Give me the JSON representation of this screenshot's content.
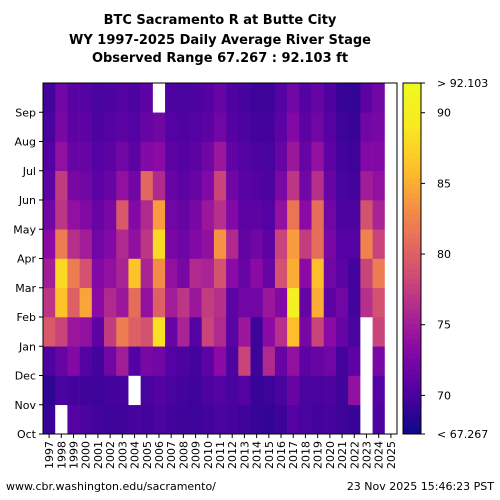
{
  "chart_data": {
    "type": "heatmap",
    "title_lines": [
      "BTC Sacramento R at Butte City",
      "WY 1997-2025 Daily Average River Stage",
      "Observed Range 67.267 : 92.103 ft"
    ],
    "x_tick_labels": [
      "1997",
      "1998",
      "1999",
      "2000",
      "2001",
      "2002",
      "2003",
      "2004",
      "2005",
      "2006",
      "2007",
      "2008",
      "2009",
      "2010",
      "2011",
      "2012",
      "2013",
      "2014",
      "2015",
      "2016",
      "2017",
      "2018",
      "2019",
      "2020",
      "2021",
      "2022",
      "2023",
      "2024",
      "2025"
    ],
    "y_tick_labels": [
      "Oct",
      "Nov",
      "Dec",
      "Jan",
      "Feb",
      "Mar",
      "Apr",
      "May",
      "Jun",
      "Jul",
      "Aug",
      "Sep"
    ],
    "colorbar": {
      "top_label": "> 92.103",
      "bottom_label": "< 67.267",
      "ticks": [
        {
          "value": 70,
          "label": "70"
        },
        {
          "value": 75,
          "label": "75"
        },
        {
          "value": 80,
          "label": "80"
        },
        {
          "value": 85,
          "label": "85"
        },
        {
          "value": 90,
          "label": "90"
        }
      ],
      "min": 67.267,
      "max": 92.103,
      "colormap": "plasma"
    },
    "series_monthly": [
      {
        "year": "1997",
        "values": [
          69.2,
          68.8,
          70.2,
          79.5,
          77.0,
          75.0,
          73.5,
          72.0,
          71.0,
          70.5,
          70.0,
          69.8
        ]
      },
      {
        "year": "1998",
        "values": [
          null,
          70.0,
          71.5,
          78.0,
          86.5,
          88.0,
          82.0,
          77.0,
          77.5,
          74.0,
          72.5,
          72.0
        ]
      },
      {
        "year": "1999",
        "values": [
          70.5,
          69.8,
          73.0,
          74.5,
          80.0,
          82.0,
          76.5,
          74.0,
          72.5,
          71.5,
          71.0,
          70.8
        ]
      },
      {
        "year": "2000",
        "values": [
          70.2,
          69.6,
          70.5,
          74.0,
          84.5,
          79.0,
          75.0,
          73.0,
          72.0,
          71.5,
          71.0,
          70.5
        ]
      },
      {
        "year": "2001",
        "values": [
          69.8,
          69.5,
          69.8,
          71.0,
          73.5,
          73.0,
          72.0,
          71.5,
          71.0,
          70.5,
          70.2,
          70.0
        ]
      },
      {
        "year": "2002",
        "values": [
          69.5,
          69.8,
          72.0,
          77.5,
          76.0,
          74.0,
          73.0,
          72.5,
          71.5,
          71.0,
          70.5,
          70.2
        ]
      },
      {
        "year": "2003",
        "values": [
          69.6,
          69.9,
          75.0,
          82.0,
          74.5,
          75.5,
          76.0,
          79.5,
          74.0,
          72.0,
          71.0,
          70.5
        ]
      },
      {
        "year": "2004",
        "values": [
          70.0,
          null,
          70.5,
          80.0,
          81.0,
          86.5,
          74.0,
          73.0,
          72.0,
          71.0,
          70.5,
          70.2
        ]
      },
      {
        "year": "2005",
        "values": [
          69.8,
          70.0,
          72.5,
          79.0,
          74.0,
          75.5,
          77.0,
          76.0,
          80.5,
          73.0,
          71.5,
          71.0
        ]
      },
      {
        "year": "2006",
        "values": [
          70.2,
          70.5,
          72.0,
          88.5,
          80.0,
          83.0,
          88.0,
          84.0,
          76.0,
          73.5,
          72.0,
          null
        ]
      },
      {
        "year": "2007",
        "values": [
          69.8,
          70.0,
          70.5,
          71.5,
          75.0,
          74.0,
          72.5,
          72.0,
          71.5,
          71.0,
          70.5,
          70.2
        ]
      },
      {
        "year": "2008",
        "values": [
          69.6,
          69.7,
          70.2,
          75.5,
          77.0,
          72.5,
          71.8,
          71.5,
          71.0,
          70.6,
          70.3,
          70.0
        ]
      },
      {
        "year": "2009",
        "values": [
          69.4,
          69.5,
          69.8,
          70.5,
          74.5,
          76.0,
          73.0,
          72.5,
          71.5,
          71.0,
          70.5,
          70.2
        ]
      },
      {
        "year": "2010",
        "values": [
          69.8,
          70.2,
          71.0,
          78.0,
          77.5,
          75.5,
          74.0,
          74.5,
          73.0,
          72.0,
          71.0,
          70.6
        ]
      },
      {
        "year": "2011",
        "values": [
          70.0,
          70.5,
          73.5,
          76.0,
          76.5,
          79.0,
          83.5,
          76.5,
          78.0,
          74.5,
          72.0,
          71.5
        ]
      },
      {
        "year": "2012",
        "values": [
          69.9,
          70.0,
          70.2,
          70.8,
          71.0,
          73.5,
          76.0,
          73.0,
          72.0,
          71.2,
          70.6,
          70.3
        ]
      },
      {
        "year": "2013",
        "values": [
          69.6,
          70.5,
          78.0,
          74.5,
          72.0,
          71.5,
          71.2,
          71.0,
          70.8,
          70.5,
          70.2,
          69.9
        ]
      },
      {
        "year": "2014",
        "values": [
          69.2,
          69.2,
          69.4,
          69.5,
          72.0,
          73.5,
          72.0,
          71.0,
          70.5,
          70.2,
          69.8,
          69.5
        ]
      },
      {
        "year": "2015",
        "values": [
          69.0,
          69.4,
          76.0,
          73.5,
          74.5,
          71.5,
          71.0,
          70.5,
          70.2,
          70.0,
          69.8,
          69.5
        ]
      },
      {
        "year": "2016",
        "values": [
          69.5,
          70.0,
          71.5,
          76.5,
          73.0,
          79.0,
          78.0,
          74.0,
          72.5,
          71.5,
          71.0,
          70.5
        ]
      },
      {
        "year": "2017",
        "values": [
          70.5,
          71.5,
          74.0,
          86.0,
          90.5,
          85.0,
          84.0,
          81.5,
          77.0,
          74.5,
          73.0,
          72.0
        ]
      },
      {
        "year": "2018",
        "values": [
          70.0,
          70.0,
          71.0,
          72.5,
          71.5,
          73.5,
          77.5,
          73.5,
          72.0,
          71.5,
          71.0,
          70.5
        ]
      },
      {
        "year": "2019",
        "values": [
          69.8,
          70.0,
          71.5,
          78.0,
          85.0,
          86.0,
          81.0,
          81.0,
          76.5,
          74.0,
          72.0,
          71.5
        ]
      },
      {
        "year": "2020",
        "values": [
          70.0,
          70.2,
          72.0,
          73.5,
          71.0,
          72.0,
          72.5,
          72.0,
          71.5,
          71.0,
          70.6,
          70.3
        ]
      },
      {
        "year": "2021",
        "values": [
          69.5,
          69.6,
          69.8,
          71.5,
          72.0,
          71.0,
          70.5,
          70.2,
          70.0,
          69.8,
          69.5,
          69.2
        ]
      },
      {
        "year": "2022",
        "values": [
          69.2,
          74.0,
          71.0,
          70.0,
          69.8,
          69.8,
          70.5,
          70.2,
          69.8,
          69.5,
          69.2,
          69.0
        ]
      },
      {
        "year": "2023",
        "values": [
          null,
          null,
          null,
          null,
          76.5,
          78.0,
          82.5,
          79.0,
          75.0,
          73.0,
          72.0,
          71.0
        ]
      },
      {
        "year": "2024",
        "values": [
          70.2,
          70.5,
          72.5,
          78.0,
          79.0,
          82.0,
          78.0,
          75.5,
          74.0,
          73.0,
          72.5,
          72.0
        ]
      },
      {
        "year": "2025",
        "values": [
          null,
          null,
          null,
          null,
          null,
          null,
          null,
          null,
          null,
          null,
          null,
          null
        ]
      }
    ],
    "data_end": "2025-10-02"
  },
  "footer": {
    "source": "www.cbr.washington.edu/sacramento/",
    "timestamp": "23 Nov 2025 15:46:23 PST"
  }
}
